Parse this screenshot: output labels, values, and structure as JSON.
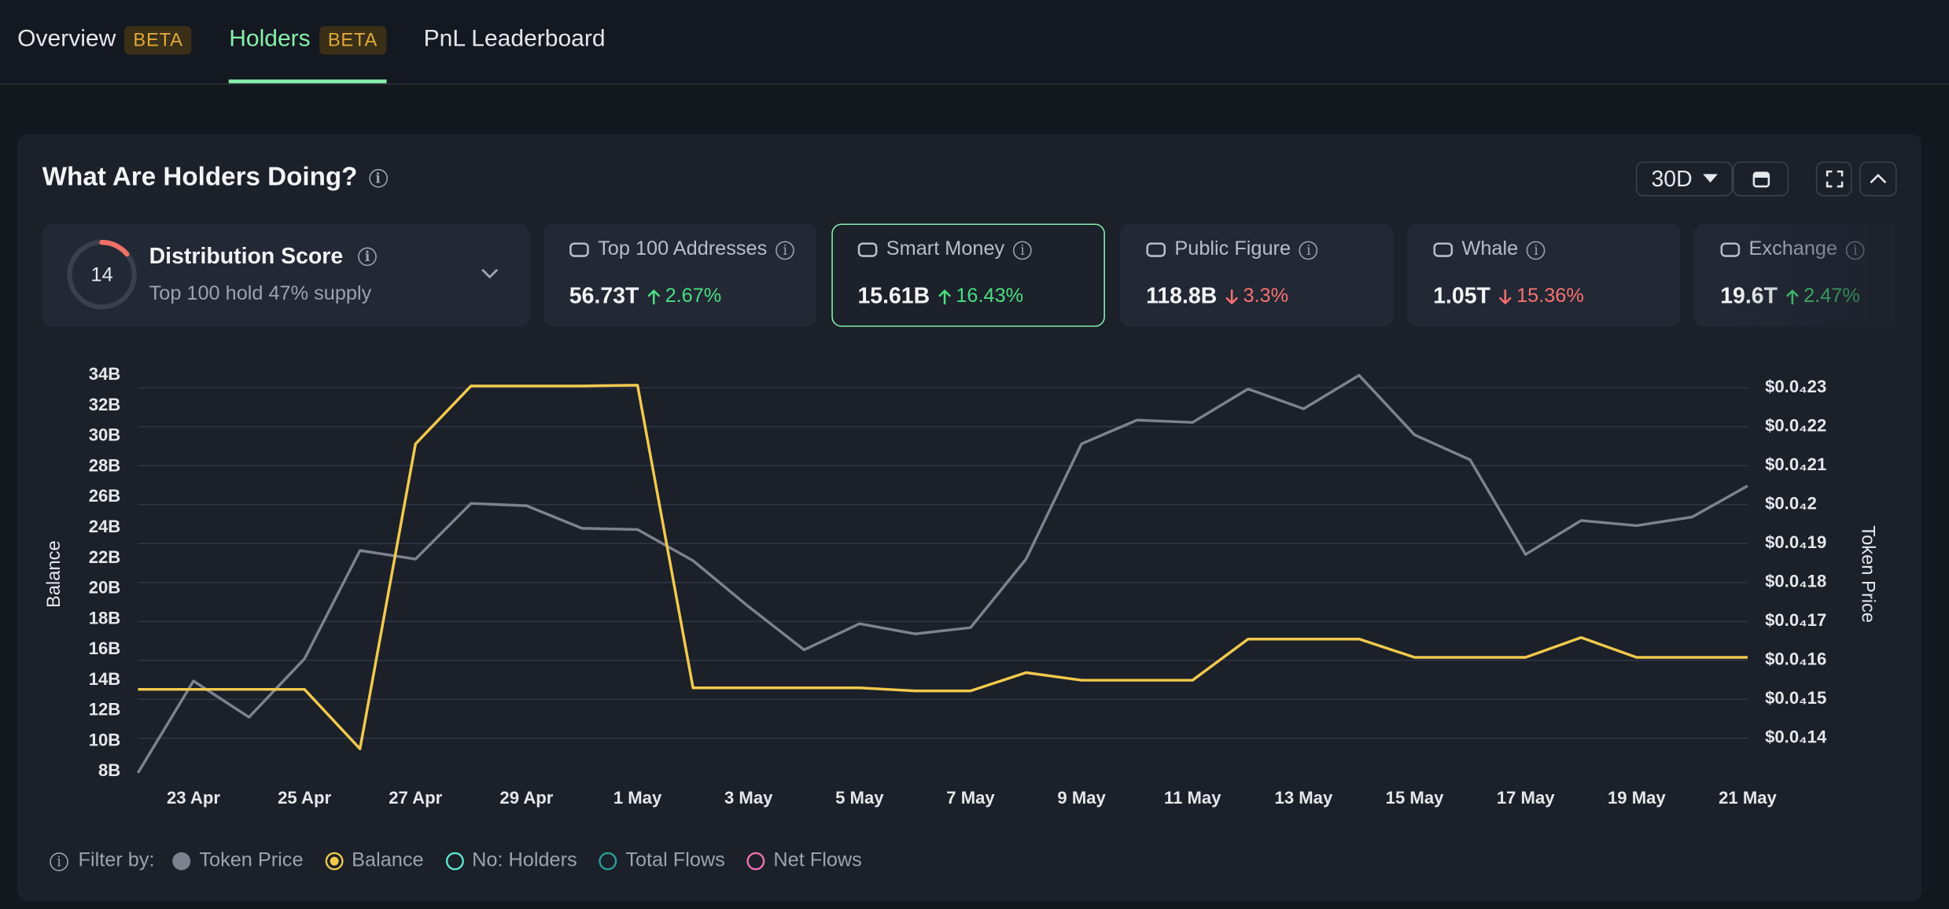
{
  "tabs": [
    {
      "label": "Overview",
      "badge": "BETA"
    },
    {
      "label": "Holders",
      "badge": "BETA",
      "active": true
    },
    {
      "label": "PnL Leaderboard"
    }
  ],
  "panel": {
    "title": "What Are Holders Doing?",
    "period": "30D"
  },
  "distribution": {
    "title": "Distribution Score",
    "score": 14,
    "subtitle": "Top 100 hold 47% supply"
  },
  "cards": [
    {
      "label": "Top 100 Addresses",
      "value": "56.73T",
      "change": "2.67%",
      "direction": "up"
    },
    {
      "label": "Smart Money",
      "value": "15.61B",
      "change": "16.43%",
      "direction": "up",
      "selected": true
    },
    {
      "label": "Public Figure",
      "value": "118.8B",
      "change": "3.3%",
      "direction": "down"
    },
    {
      "label": "Whale",
      "value": "1.05T",
      "change": "15.36%",
      "direction": "down"
    },
    {
      "label": "Exchange",
      "value": "19.6T",
      "change": "2.47%",
      "direction": "up"
    }
  ],
  "chart_data": {
    "type": "line",
    "y_label": "Balance",
    "y2_label": "Token Price",
    "categories": [
      null,
      "23 Apr",
      null,
      "25 Apr",
      null,
      "27 Apr",
      null,
      "29 Apr",
      null,
      "1 May",
      null,
      "3 May",
      null,
      "5 May",
      null,
      "7 May",
      null,
      "9 May",
      null,
      "11 May",
      null,
      "13 May",
      null,
      "15 May",
      null,
      "17 May",
      null,
      "19 May",
      null,
      "21 May"
    ],
    "series": [
      {
        "name": "Token Price",
        "color": "#7d828e",
        "axis": "y2",
        "values": [
          1.311e-05,
          1.547e-05,
          1.454e-05,
          1.604e-05,
          1.882e-05,
          1.86e-05,
          2.003e-05,
          1.997e-05,
          1.939e-05,
          1.936e-05,
          1.856e-05,
          1.738e-05,
          1.627e-05,
          1.694e-05,
          1.668e-05,
          1.684e-05,
          1.86e-05,
          2.156e-05,
          2.217e-05,
          2.211e-05,
          2.297e-05,
          2.246e-05,
          2.332e-05,
          2.179e-05,
          2.115e-05,
          1.872e-05,
          1.959e-05,
          1.946e-05,
          1.968e-05,
          2.048e-05
        ]
      },
      {
        "name": "Balance",
        "color": "#f2c94c",
        "values": [
          13.4,
          13.4,
          13.4,
          13.4,
          9.5,
          29.5,
          33.3,
          33.3,
          33.3,
          33.35,
          13.5,
          13.5,
          13.5,
          13.5,
          13.3,
          13.3,
          14.5,
          14.0,
          14.0,
          14.0,
          16.7,
          16.7,
          16.7,
          15.5,
          15.5,
          15.5,
          16.8,
          15.5,
          15.5,
          15.5
        ]
      }
    ],
    "ylim": [
      8,
      34
    ],
    "yticks": [
      {
        "value": 8,
        "label": "8B"
      },
      {
        "value": 10,
        "label": "10B"
      },
      {
        "value": 12,
        "label": "12B"
      },
      {
        "value": 14,
        "label": "14B"
      },
      {
        "value": 16,
        "label": "16B"
      },
      {
        "value": 18,
        "label": "18B"
      },
      {
        "value": 20,
        "label": "20B"
      },
      {
        "value": 22,
        "label": "22B"
      },
      {
        "value": 24,
        "label": "24B"
      },
      {
        "value": 26,
        "label": "26B"
      },
      {
        "value": 28,
        "label": "28B"
      },
      {
        "value": 30,
        "label": "30B"
      },
      {
        "value": 32,
        "label": "32B"
      },
      {
        "value": 34,
        "label": "34B"
      }
    ],
    "y2lim": [
      1.314e-05,
      2.332e-05
    ],
    "y2ticks": [
      {
        "value": 1.4e-05,
        "label": "$0.0₄14"
      },
      {
        "value": 1.5e-05,
        "label": "$0.0₄15"
      },
      {
        "value": 1.6e-05,
        "label": "$0.0₄16"
      },
      {
        "value": 1.7e-05,
        "label": "$0.0₄17"
      },
      {
        "value": 1.8e-05,
        "label": "$0.0₄18"
      },
      {
        "value": 1.9e-05,
        "label": "$0.0₄19"
      },
      {
        "value": 2e-05,
        "label": "$0.0₄2"
      },
      {
        "value": 2.1e-05,
        "label": "$0.0₄21"
      },
      {
        "value": 2.2e-05,
        "label": "$0.0₄22"
      },
      {
        "value": 2.3e-05,
        "label": "$0.0₄23"
      }
    ],
    "grid": true
  },
  "filters": {
    "label": "Filter by:",
    "items": [
      {
        "name": "No: Holders",
        "color": "#5eead4"
      },
      {
        "name": "Total Flows",
        "color": "#2aa198"
      },
      {
        "name": "Net Flows",
        "color": "#f472b6"
      }
    ]
  }
}
